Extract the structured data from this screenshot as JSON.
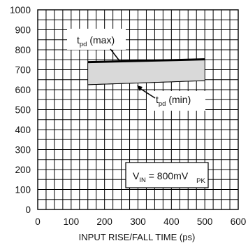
{
  "chart_data": {
    "type": "area",
    "title": "",
    "xlabel": "INPUT RISE/FALL TIME (ps)",
    "ylabel": "",
    "xlim": [
      0,
      600
    ],
    "ylim": [
      0,
      1000
    ],
    "x_ticks": [
      0,
      100,
      200,
      300,
      400,
      500,
      600
    ],
    "x_tick_labels": [
      "0",
      "100",
      "200",
      "300",
      "400",
      "500",
      "600"
    ],
    "y_ticks": [
      0,
      100,
      200,
      300,
      400,
      500,
      600,
      700,
      800,
      900,
      1000
    ],
    "y_tick_labels": [
      "0",
      "100",
      "200",
      "300",
      "400",
      "500",
      "600",
      "700",
      "800",
      "900",
      "1000"
    ],
    "grid": true,
    "series": [
      {
        "name": "tpd (max)",
        "x": [
          150,
          500
        ],
        "y": [
          738,
          752
        ]
      },
      {
        "name": "tpd (min)",
        "x": [
          150,
          500
        ],
        "y": [
          625,
          645
        ]
      }
    ],
    "annotations": {
      "max_label": {
        "main": "t",
        "sub": "pd",
        "tail": " (max)"
      },
      "min_label": {
        "main": "t",
        "sub": "pd",
        "tail": " (min)"
      },
      "vin_label": {
        "main": "V",
        "sub": "IN",
        "mid": " = 800mV",
        "sub2": "PK"
      }
    },
    "colors": {
      "band": "#d9d9d9",
      "line": "#000000"
    }
  }
}
